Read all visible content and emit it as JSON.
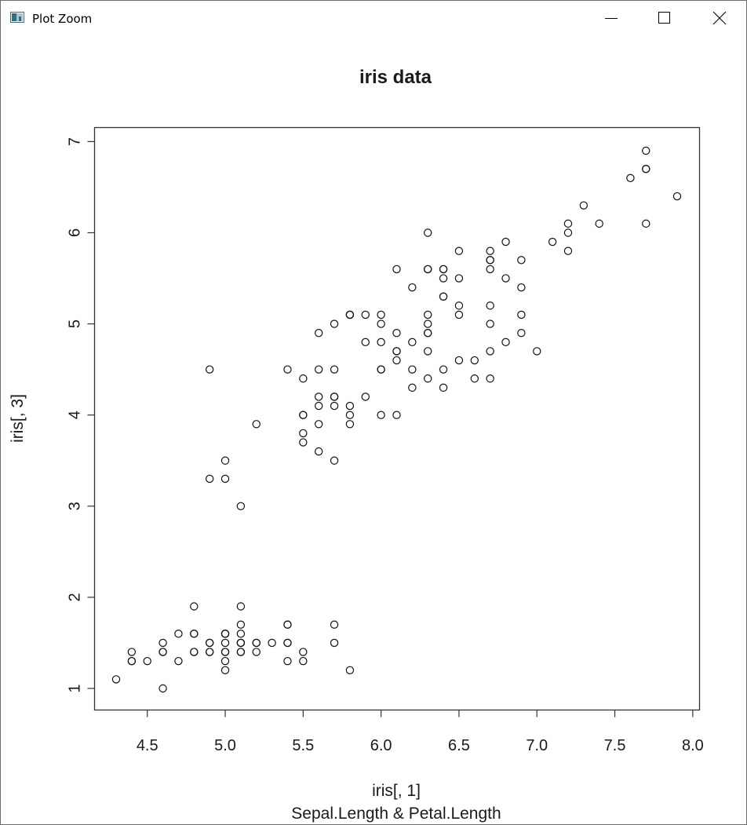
{
  "window": {
    "title": "Plot Zoom",
    "controls": {
      "minimize_icon": "minimize-icon",
      "maximize_icon": "maximize-icon",
      "close_icon": "close-icon"
    }
  },
  "chart_data": {
    "type": "scatter",
    "title": "iris data",
    "xlabel": "iris[, 1]",
    "ylabel": "iris[, 3]",
    "subtitle": "Sepal.Length & Petal.Length",
    "xlim": [
      4.3,
      7.9
    ],
    "ylim": [
      1.0,
      6.9
    ],
    "xticks": [
      4.5,
      5.0,
      5.5,
      6.0,
      6.5,
      7.0,
      7.5,
      8.0
    ],
    "xtick_labels": [
      "4.5",
      "5.0",
      "5.5",
      "6.0",
      "6.5",
      "7.0",
      "7.5",
      "8.0"
    ],
    "yticks": [
      1,
      2,
      3,
      4,
      5,
      6,
      7
    ],
    "ytick_labels": [
      "1",
      "2",
      "3",
      "4",
      "5",
      "6",
      "7"
    ],
    "marker": "open-circle",
    "grid": false,
    "points": [
      [
        5.1,
        1.4
      ],
      [
        4.9,
        1.4
      ],
      [
        4.7,
        1.3
      ],
      [
        4.6,
        1.5
      ],
      [
        5.0,
        1.4
      ],
      [
        5.4,
        1.7
      ],
      [
        4.6,
        1.4
      ],
      [
        5.0,
        1.5
      ],
      [
        4.4,
        1.4
      ],
      [
        4.9,
        1.5
      ],
      [
        5.4,
        1.5
      ],
      [
        4.8,
        1.6
      ],
      [
        4.8,
        1.4
      ],
      [
        4.3,
        1.1
      ],
      [
        5.8,
        1.2
      ],
      [
        5.7,
        1.5
      ],
      [
        5.4,
        1.3
      ],
      [
        5.1,
        1.4
      ],
      [
        5.7,
        1.7
      ],
      [
        5.1,
        1.5
      ],
      [
        5.4,
        1.7
      ],
      [
        5.1,
        1.5
      ],
      [
        4.6,
        1.0
      ],
      [
        5.1,
        1.7
      ],
      [
        4.8,
        1.9
      ],
      [
        5.0,
        1.6
      ],
      [
        5.0,
        1.6
      ],
      [
        5.2,
        1.5
      ],
      [
        5.2,
        1.4
      ],
      [
        4.7,
        1.6
      ],
      [
        4.8,
        1.6
      ],
      [
        5.4,
        1.5
      ],
      [
        5.2,
        1.5
      ],
      [
        5.5,
        1.4
      ],
      [
        4.9,
        1.5
      ],
      [
        5.0,
        1.2
      ],
      [
        5.5,
        1.3
      ],
      [
        4.9,
        1.4
      ],
      [
        4.4,
        1.3
      ],
      [
        5.1,
        1.5
      ],
      [
        5.0,
        1.3
      ],
      [
        4.5,
        1.3
      ],
      [
        4.4,
        1.3
      ],
      [
        5.0,
        1.6
      ],
      [
        5.1,
        1.9
      ],
      [
        4.8,
        1.4
      ],
      [
        5.1,
        1.6
      ],
      [
        4.6,
        1.4
      ],
      [
        5.3,
        1.5
      ],
      [
        5.0,
        1.4
      ],
      [
        7.0,
        4.7
      ],
      [
        6.4,
        4.5
      ],
      [
        6.9,
        4.9
      ],
      [
        5.5,
        4.0
      ],
      [
        6.5,
        4.6
      ],
      [
        5.7,
        4.5
      ],
      [
        6.3,
        4.7
      ],
      [
        4.9,
        3.3
      ],
      [
        6.6,
        4.6
      ],
      [
        5.2,
        3.9
      ],
      [
        5.0,
        3.5
      ],
      [
        5.9,
        4.2
      ],
      [
        6.0,
        4.0
      ],
      [
        6.1,
        4.7
      ],
      [
        5.6,
        3.6
      ],
      [
        6.7,
        4.4
      ],
      [
        5.6,
        4.5
      ],
      [
        5.8,
        4.1
      ],
      [
        6.2,
        4.5
      ],
      [
        5.6,
        3.9
      ],
      [
        5.9,
        4.8
      ],
      [
        6.1,
        4.0
      ],
      [
        6.3,
        4.9
      ],
      [
        6.1,
        4.7
      ],
      [
        6.4,
        4.3
      ],
      [
        6.6,
        4.4
      ],
      [
        6.8,
        4.8
      ],
      [
        6.7,
        5.0
      ],
      [
        6.0,
        4.5
      ],
      [
        5.7,
        3.5
      ],
      [
        5.5,
        3.8
      ],
      [
        5.5,
        3.7
      ],
      [
        5.8,
        3.9
      ],
      [
        6.0,
        5.1
      ],
      [
        5.4,
        4.5
      ],
      [
        6.0,
        4.5
      ],
      [
        6.7,
        4.7
      ],
      [
        6.3,
        4.4
      ],
      [
        5.6,
        4.1
      ],
      [
        5.5,
        4.0
      ],
      [
        5.5,
        4.4
      ],
      [
        6.1,
        4.6
      ],
      [
        5.8,
        4.0
      ],
      [
        5.0,
        3.3
      ],
      [
        5.6,
        4.2
      ],
      [
        5.7,
        4.2
      ],
      [
        5.7,
        4.2
      ],
      [
        6.2,
        4.3
      ],
      [
        5.1,
        3.0
      ],
      [
        5.7,
        4.1
      ],
      [
        6.3,
        6.0
      ],
      [
        5.8,
        5.1
      ],
      [
        7.1,
        5.9
      ],
      [
        6.3,
        5.6
      ],
      [
        6.5,
        5.8
      ],
      [
        7.6,
        6.6
      ],
      [
        4.9,
        4.5
      ],
      [
        7.3,
        6.3
      ],
      [
        6.7,
        5.8
      ],
      [
        7.2,
        6.1
      ],
      [
        6.5,
        5.1
      ],
      [
        6.4,
        5.3
      ],
      [
        6.8,
        5.5
      ],
      [
        5.7,
        5.0
      ],
      [
        5.8,
        5.1
      ],
      [
        6.4,
        5.3
      ],
      [
        6.5,
        5.5
      ],
      [
        7.7,
        6.7
      ],
      [
        7.7,
        6.9
      ],
      [
        6.0,
        5.0
      ],
      [
        6.9,
        5.7
      ],
      [
        5.6,
        4.9
      ],
      [
        7.7,
        6.7
      ],
      [
        6.3,
        4.9
      ],
      [
        6.7,
        5.7
      ],
      [
        7.2,
        6.0
      ],
      [
        6.2,
        4.8
      ],
      [
        6.1,
        4.9
      ],
      [
        6.4,
        5.6
      ],
      [
        7.2,
        5.8
      ],
      [
        7.4,
        6.1
      ],
      [
        7.9,
        6.4
      ],
      [
        6.4,
        5.6
      ],
      [
        6.3,
        5.1
      ],
      [
        6.1,
        5.6
      ],
      [
        7.7,
        6.1
      ],
      [
        6.3,
        5.6
      ],
      [
        6.4,
        5.5
      ],
      [
        6.0,
        4.8
      ],
      [
        6.9,
        5.4
      ],
      [
        6.7,
        5.6
      ],
      [
        6.9,
        5.1
      ],
      [
        5.8,
        5.1
      ],
      [
        6.8,
        5.9
      ],
      [
        6.7,
        5.7
      ],
      [
        6.7,
        5.2
      ],
      [
        6.3,
        5.0
      ],
      [
        6.5,
        5.2
      ],
      [
        6.2,
        5.4
      ],
      [
        5.9,
        5.1
      ]
    ]
  }
}
